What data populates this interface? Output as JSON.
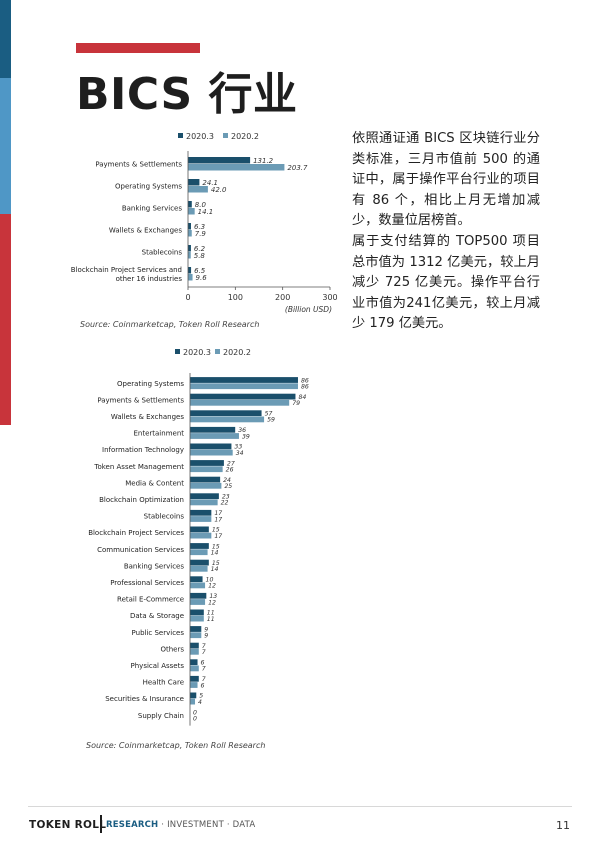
{
  "page": {
    "title": "BICS 行业",
    "paragraph_1": "依照通证通 BICS 区块链行业分类标准，三月市值前 500 的通证中，属于操作平台行业的项目有 86 个，相比上月无增加减少，数量位居榜首。",
    "paragraph_2": "属于支付结算的 TOP500 项目总市值为 1312 亿美元，较上月减少 725 亿美元。操作平台行业市值为241亿美元，较上月减少 179 亿美元。"
  },
  "footer": {
    "brand": "TOKEN ROLL",
    "tag_strong": "RESEARCH",
    "tag_rest": " · INVESTMENT · DATA",
    "page_number": "11"
  },
  "colors": {
    "series_2020_3": "#1a4f6b",
    "series_2020_2": "#6b9bb5",
    "accent_red": "#c8343b",
    "accent_blue": "#4f97c6",
    "accent_dark_blue": "#1a5d82"
  },
  "chart_data": [
    {
      "type": "bar",
      "orientation": "horizontal",
      "categories": [
        "Payments & Settlements",
        "Operating Systems",
        "Banking Services",
        "Wallets & Exchanges",
        "Stablecoins",
        "Blockchain Project Services and other 16 industries"
      ],
      "series": [
        {
          "name": "2020.3",
          "values": [
            131.2,
            24.1,
            8.0,
            6.3,
            6.2,
            6.5
          ],
          "labels": [
            "131.2",
            "24.1",
            "8.0",
            "6.3",
            "6.2",
            "6.5"
          ]
        },
        {
          "name": "2020.2",
          "values": [
            203.7,
            42.0,
            14.1,
            7.9,
            5.8,
            9.6
          ],
          "labels": [
            "203.7",
            "42.0",
            "14.1",
            "7.9",
            "5.8",
            "9.6"
          ]
        }
      ],
      "xlabel": "(Billion USD)",
      "xlim": [
        0,
        300
      ],
      "xticks": [
        "0",
        "100",
        "200",
        "300"
      ],
      "legend": "top",
      "grid": false,
      "source": "Source: Coinmarketcap, Token Roll Research"
    },
    {
      "type": "bar",
      "orientation": "horizontal",
      "categories": [
        "Operating Systems",
        "Payments & Settlements",
        "Wallets & Exchanges",
        "Entertainment",
        "Information Technology",
        "Token Asset Management",
        "Media & Content",
        "Blockchain Optimization",
        "Stablecoins",
        "Blockchain Project Services",
        "Communication Services",
        "Banking Services",
        "Professional Services",
        "Retail E-Commerce",
        "Data & Storage",
        "Public Services",
        "Others",
        "Physical Assets",
        "Health Care",
        "Securities & Insurance",
        "Supply Chain"
      ],
      "series": [
        {
          "name": "2020.3",
          "values": [
            86,
            84,
            57,
            36,
            33,
            27,
            24,
            23,
            17,
            15,
            15,
            15,
            10,
            13,
            11,
            9,
            7,
            6,
            7,
            5,
            0
          ]
        },
        {
          "name": "2020.2",
          "values": [
            86,
            79,
            59,
            39,
            34,
            26,
            25,
            22,
            17,
            17,
            14,
            14,
            12,
            12,
            11,
            9,
            7,
            7,
            6,
            4,
            0
          ]
        }
      ],
      "xlim": [
        0,
        90
      ],
      "legend": "top",
      "grid": false,
      "source": "Source: Coinmarketcap, Token Roll Research"
    }
  ]
}
